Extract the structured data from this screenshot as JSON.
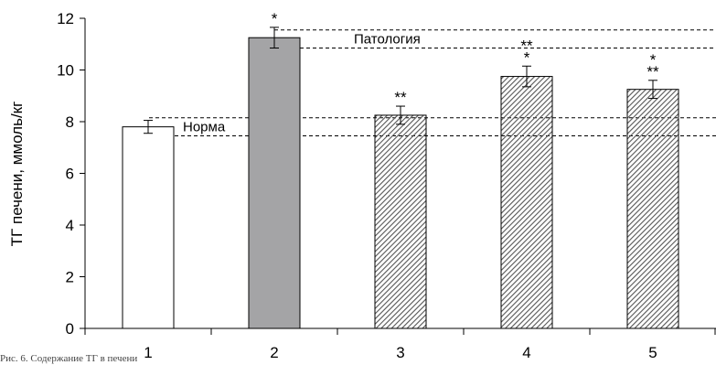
{
  "chart_data": {
    "type": "bar",
    "categories": [
      "1",
      "2",
      "3",
      "4",
      "5"
    ],
    "values": [
      7.8,
      11.25,
      8.25,
      9.75,
      9.25
    ],
    "errors": [
      0.25,
      0.4,
      0.35,
      0.4,
      0.35
    ],
    "significance": [
      "",
      "*",
      "**",
      "**\n*",
      "*\n**"
    ],
    "bar_fills": [
      "white",
      "gray",
      "hatched",
      "hatched",
      "hatched"
    ],
    "ylabel": "ТГ печени, ммоль/кг",
    "xlabel": "",
    "ylim": [
      0,
      12
    ],
    "yticks": [
      0,
      2,
      4,
      6,
      8,
      10,
      12
    ],
    "grid": false,
    "reference_bands": [
      {
        "label": "Норма",
        "lower": 7.45,
        "upper": 8.15
      },
      {
        "label": "Патология",
        "lower": 10.85,
        "upper": 11.55
      }
    ],
    "colors": {
      "gray_bar": "#a4a4a6",
      "hatch": "#555555",
      "outline": "#000000"
    }
  },
  "caption_fragment": "Рис. 6. Содержание ТГ в печени"
}
